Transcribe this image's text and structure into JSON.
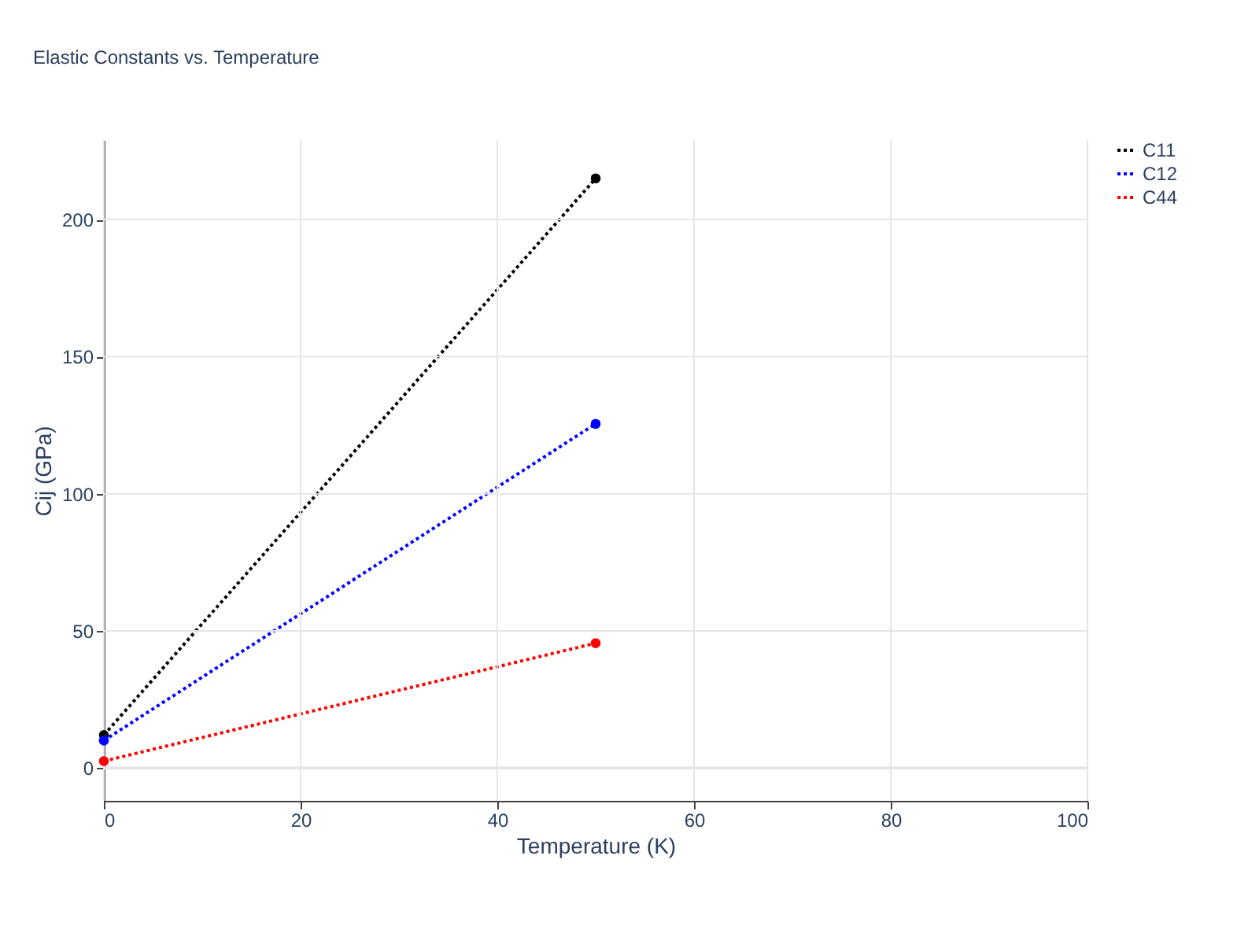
{
  "chart_data": {
    "type": "line",
    "title": "Elastic Constants vs. Temperature",
    "xlabel": "Temperature (K)",
    "ylabel": "Cij (GPa)",
    "x": [
      0,
      50
    ],
    "series": [
      {
        "name": "C11",
        "color": "#000000",
        "values": [
          12,
          215
        ]
      },
      {
        "name": "C12",
        "color": "#0000ff",
        "values": [
          10,
          125.5
        ]
      },
      {
        "name": "C44",
        "color": "#ff0000",
        "values": [
          2.5,
          45.5
        ]
      }
    ],
    "xlim": [
      0,
      100
    ],
    "ylim": [
      -12,
      229
    ],
    "xticks": [
      0,
      20,
      40,
      60,
      80,
      100
    ],
    "yticks": [
      0,
      50,
      100,
      150,
      200
    ],
    "grid": true,
    "legend": "top right",
    "marker": "circle",
    "line_style": "dotted"
  }
}
